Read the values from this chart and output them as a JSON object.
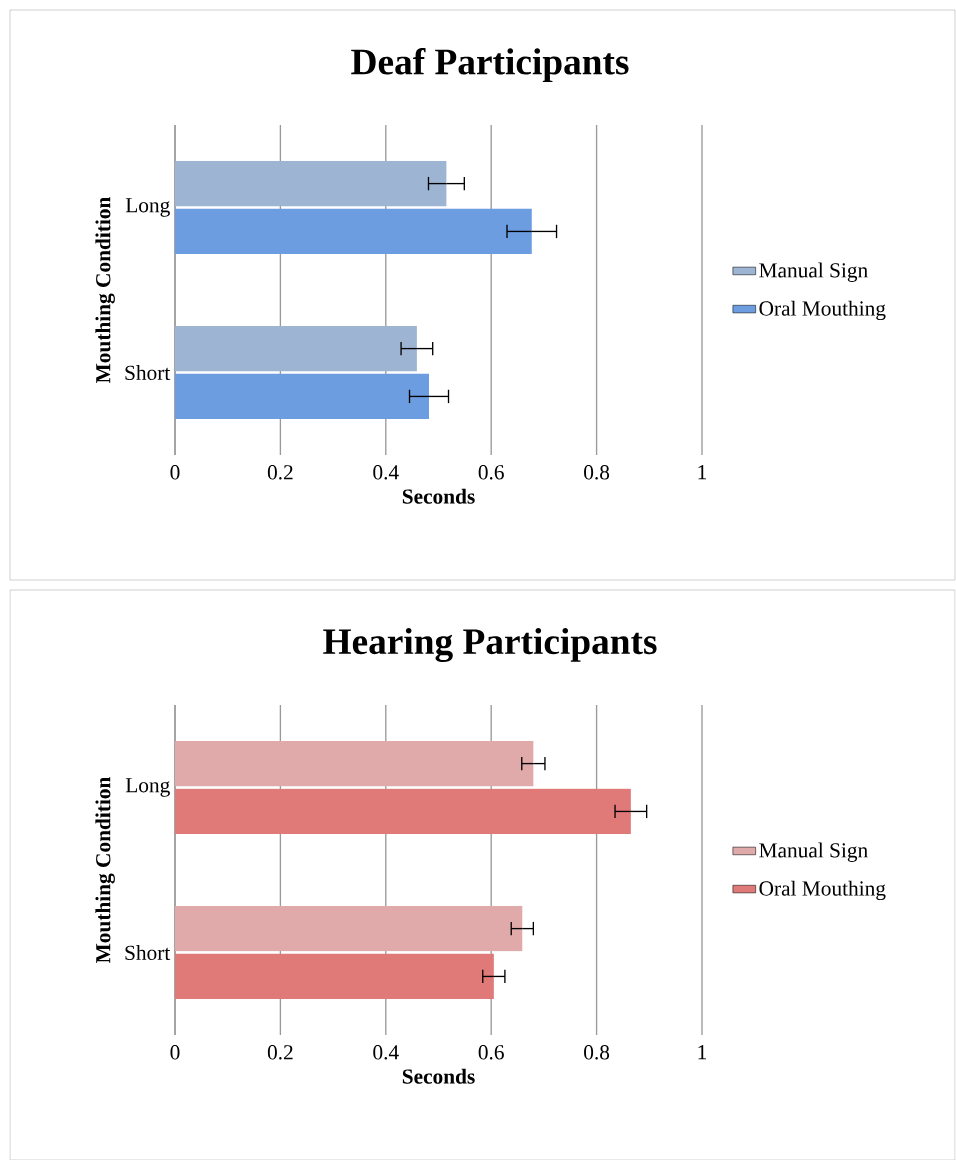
{
  "chart_data": [
    {
      "type": "bar",
      "orientation": "horizontal",
      "title": "Deaf Participants",
      "xlabel": "Seconds",
      "ylabel": "Mouthing Condition",
      "categories": [
        "Long",
        "Short"
      ],
      "series": [
        {
          "name": "Manual Sign",
          "color": "#9db5d3",
          "values": [
            0.515,
            0.459
          ],
          "errors": [
            0.034,
            0.03
          ]
        },
        {
          "name": "Oral Mouthing",
          "color": "#6b9de0",
          "values": [
            0.677,
            0.482
          ],
          "errors": [
            0.047,
            0.037
          ]
        }
      ],
      "xlim": [
        0,
        1
      ],
      "xticks": [
        0,
        0.2,
        0.4,
        0.6,
        0.8,
        1
      ],
      "grid": "x",
      "legend": "right"
    },
    {
      "type": "bar",
      "orientation": "horizontal",
      "title": "Hearing Participants",
      "xlabel": "Seconds",
      "ylabel": "Mouthing Condition",
      "categories": [
        "Long",
        "Short"
      ],
      "series": [
        {
          "name": "Manual Sign",
          "color": "#e0aaaa",
          "values": [
            0.68,
            0.659
          ],
          "errors": [
            0.022,
            0.021
          ]
        },
        {
          "name": "Oral Mouthing",
          "color": "#e07a78",
          "values": [
            0.865,
            0.605
          ],
          "errors": [
            0.03,
            0.021
          ]
        }
      ],
      "xlim": [
        0,
        1
      ],
      "xticks": [
        0,
        0.2,
        0.4,
        0.6,
        0.8,
        1
      ],
      "grid": "x",
      "legend": "right"
    }
  ]
}
